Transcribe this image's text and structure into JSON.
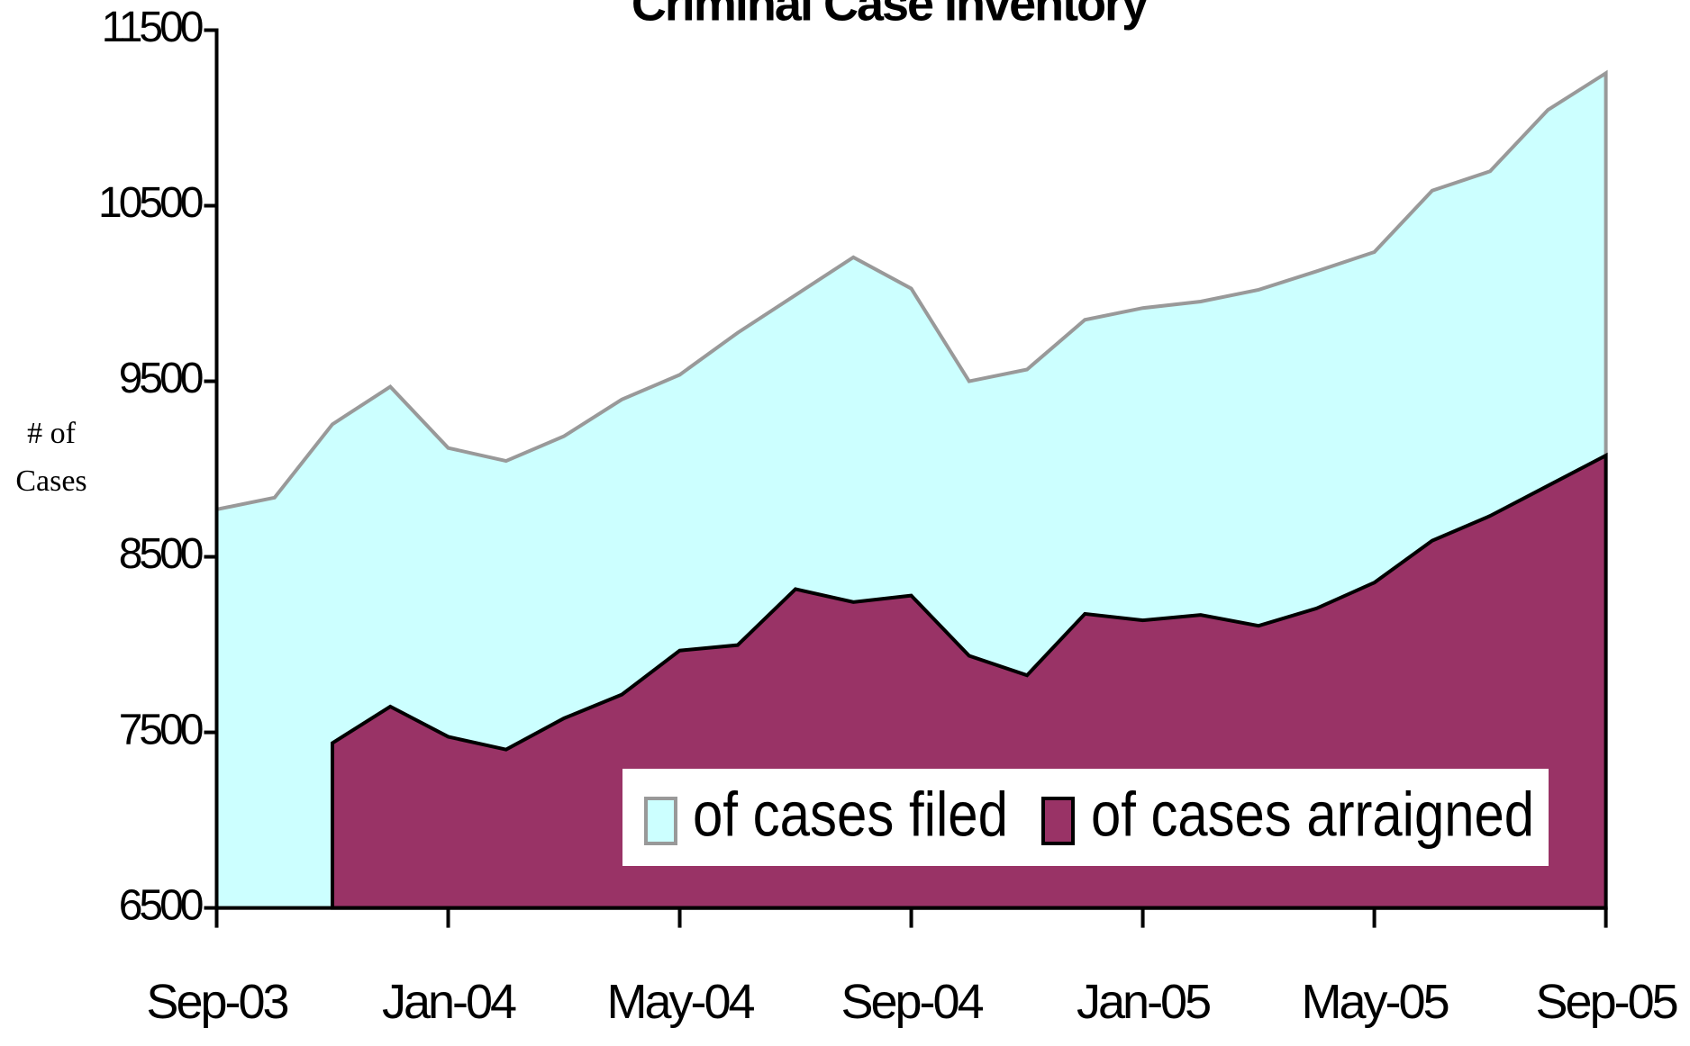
{
  "chart_data": {
    "type": "area",
    "title": "Criminal Case Inventory",
    "y_label": "# of Cases",
    "categories": [
      "Sep-03",
      null,
      null,
      null,
      "Jan-04",
      null,
      null,
      null,
      "May-04",
      null,
      null,
      null,
      "Sep-04",
      null,
      null,
      null,
      "Jan-05",
      null,
      null,
      null,
      "May-05",
      null,
      null,
      null,
      "Sep-05"
    ],
    "series": [
      {
        "name": "of cases filed",
        "color": "#ccffff",
        "line_color": "#999999",
        "values": [
          8770,
          8837,
          9255,
          9469,
          9120,
          9046,
          9187,
          9396,
          9537,
          9776,
          9991,
          10206,
          10028,
          9500,
          9567,
          9850,
          9917,
          9954,
          10021,
          10126,
          10236,
          10586,
          10696,
          11046,
          11255
        ]
      },
      {
        "name": "of cases arraigned",
        "color": "#993366",
        "line_color": "#000000",
        "values": [
          null,
          null,
          7439,
          7647,
          7475,
          7402,
          7580,
          7715,
          7966,
          7997,
          8316,
          8242,
          8279,
          7936,
          7825,
          8175,
          8138,
          8169,
          8107,
          8206,
          8353,
          8592,
          8733,
          8905,
          9077
        ]
      }
    ],
    "ylim": [
      6500,
      11500
    ],
    "yticks": [
      6500,
      7500,
      8500,
      9500,
      10500,
      11500
    ],
    "grid": false
  }
}
